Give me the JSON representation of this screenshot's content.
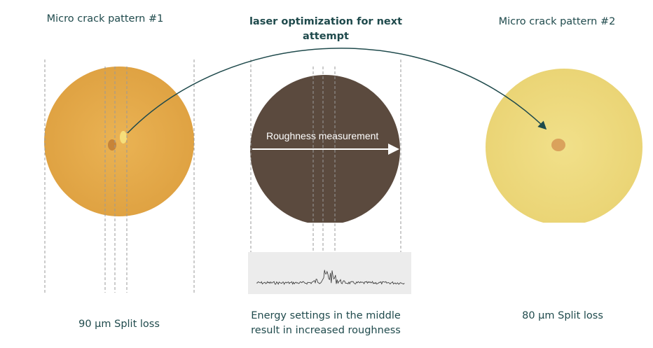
{
  "panels": [
    {
      "title": "Micro crack pattern #1",
      "caption": "90 µm Split loss"
    },
    {
      "title": "laser optimization for next attempt",
      "overlay_label": "Roughness measurement",
      "caption": "Energy settings in the middle result in increased roughness"
    },
    {
      "title": "Micro crack pattern #2",
      "caption": "80 µm Split loss"
    }
  ]
}
